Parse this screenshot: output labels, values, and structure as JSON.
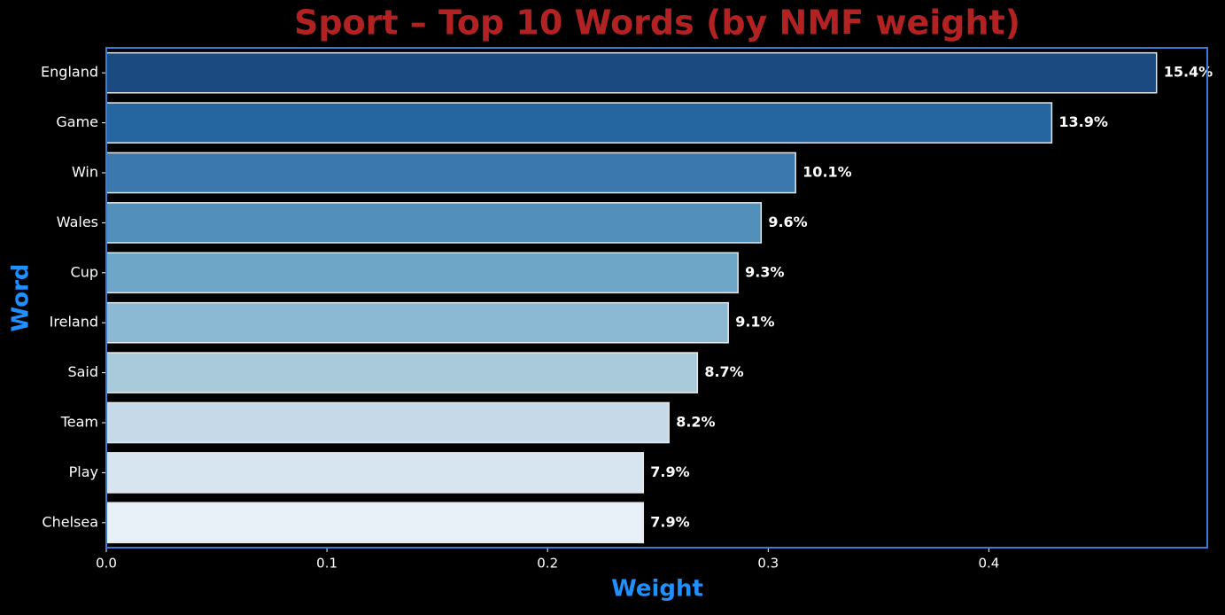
{
  "chart_data": {
    "type": "barh",
    "title": "Sport – Top 10 Words (by NMF weight)",
    "x_label": "Weight",
    "y_label": "Word",
    "categories": [
      "England",
      "Game",
      "Win",
      "Wales",
      "Cup",
      "Ireland",
      "Said",
      "Team",
      "Play",
      "Chelsea"
    ],
    "values": [
      0.476,
      0.4285,
      0.3124,
      0.2968,
      0.2863,
      0.2819,
      0.2679,
      0.255,
      0.2434,
      0.2434
    ],
    "percent_labels": [
      "15.4%",
      "13.9%",
      "10.1%",
      "9.6%",
      "9.3%",
      "9.1%",
      "8.7%",
      "8.2%",
      "7.9%",
      "7.9%"
    ],
    "colors": [
      "#1a4a80",
      "#2565a0",
      "#3a78ad",
      "#5290bb",
      "#6ea6c8",
      "#8bb8d2",
      "#a9cadb",
      "#c5d9e8",
      "#d7e5f1",
      "#e8f0f8"
    ],
    "xlim": [
      0,
      0.499
    ],
    "xticks": [
      {
        "value": 0,
        "label": "0.0"
      },
      0.1,
      0.2,
      0.3,
      0.4
    ]
  }
}
